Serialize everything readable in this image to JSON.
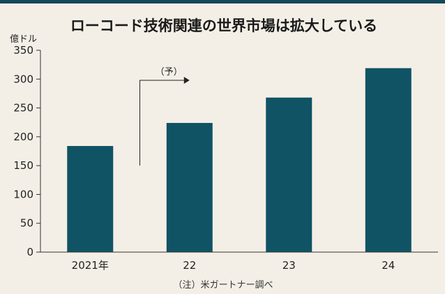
{
  "title": "ローコード技術関連の世界市場は拡大している",
  "note": "（注）米ガートナー調べ",
  "forecast_label": "（予）",
  "colors": {
    "background": "#f4efe6",
    "top_bar": "#14485a",
    "bar": "#0f5364"
  },
  "chart_data": {
    "type": "bar",
    "title": "ローコード技術関連の世界市場は拡大している",
    "ylabel": "億ドル",
    "xlabel": "",
    "categories": [
      "2021年",
      "22",
      "23",
      "24"
    ],
    "values": [
      184,
      224,
      268,
      319
    ],
    "ylim": [
      0,
      350
    ],
    "yticks": [
      0,
      50,
      100,
      150,
      200,
      250,
      300,
      350
    ],
    "grid": false,
    "forecast_from_index": 1
  }
}
